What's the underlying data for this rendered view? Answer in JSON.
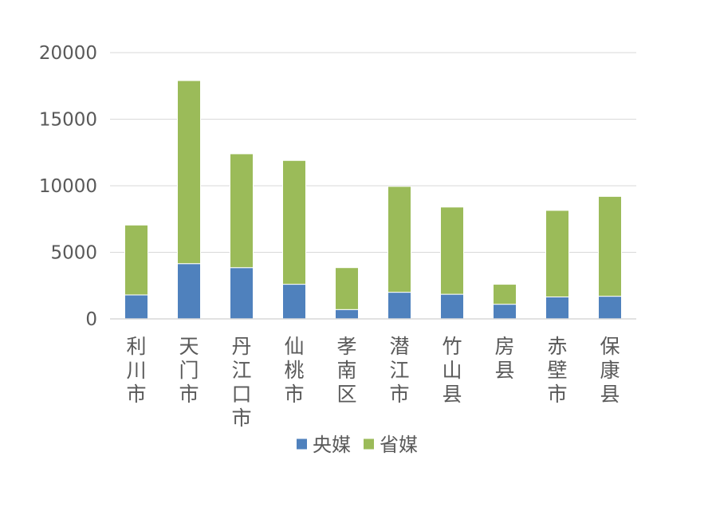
{
  "chart_data": {
    "type": "bar",
    "stacked": true,
    "title": "",
    "xlabel": "",
    "ylabel": "",
    "categories": [
      "利川市",
      "天门市",
      "丹江口市",
      "仙桃市",
      "孝南区",
      "潜江市",
      "竹山县",
      "房县",
      "赤壁市",
      "保康县"
    ],
    "series": [
      {
        "name": "央媒",
        "color": "#4f81bd",
        "values": [
          1800,
          4150,
          3850,
          2600,
          700,
          2000,
          1850,
          1100,
          1650,
          1700
        ]
      },
      {
        "name": "省媒",
        "color": "#9bbb59",
        "values": [
          5250,
          13750,
          8550,
          9300,
          3150,
          7950,
          6550,
          1500,
          6500,
          7500
        ]
      }
    ],
    "ylim": [
      0,
      20000
    ],
    "yticks": [
      0,
      5000,
      10000,
      15000,
      20000
    ],
    "grid": true,
    "legend": "bottom"
  }
}
